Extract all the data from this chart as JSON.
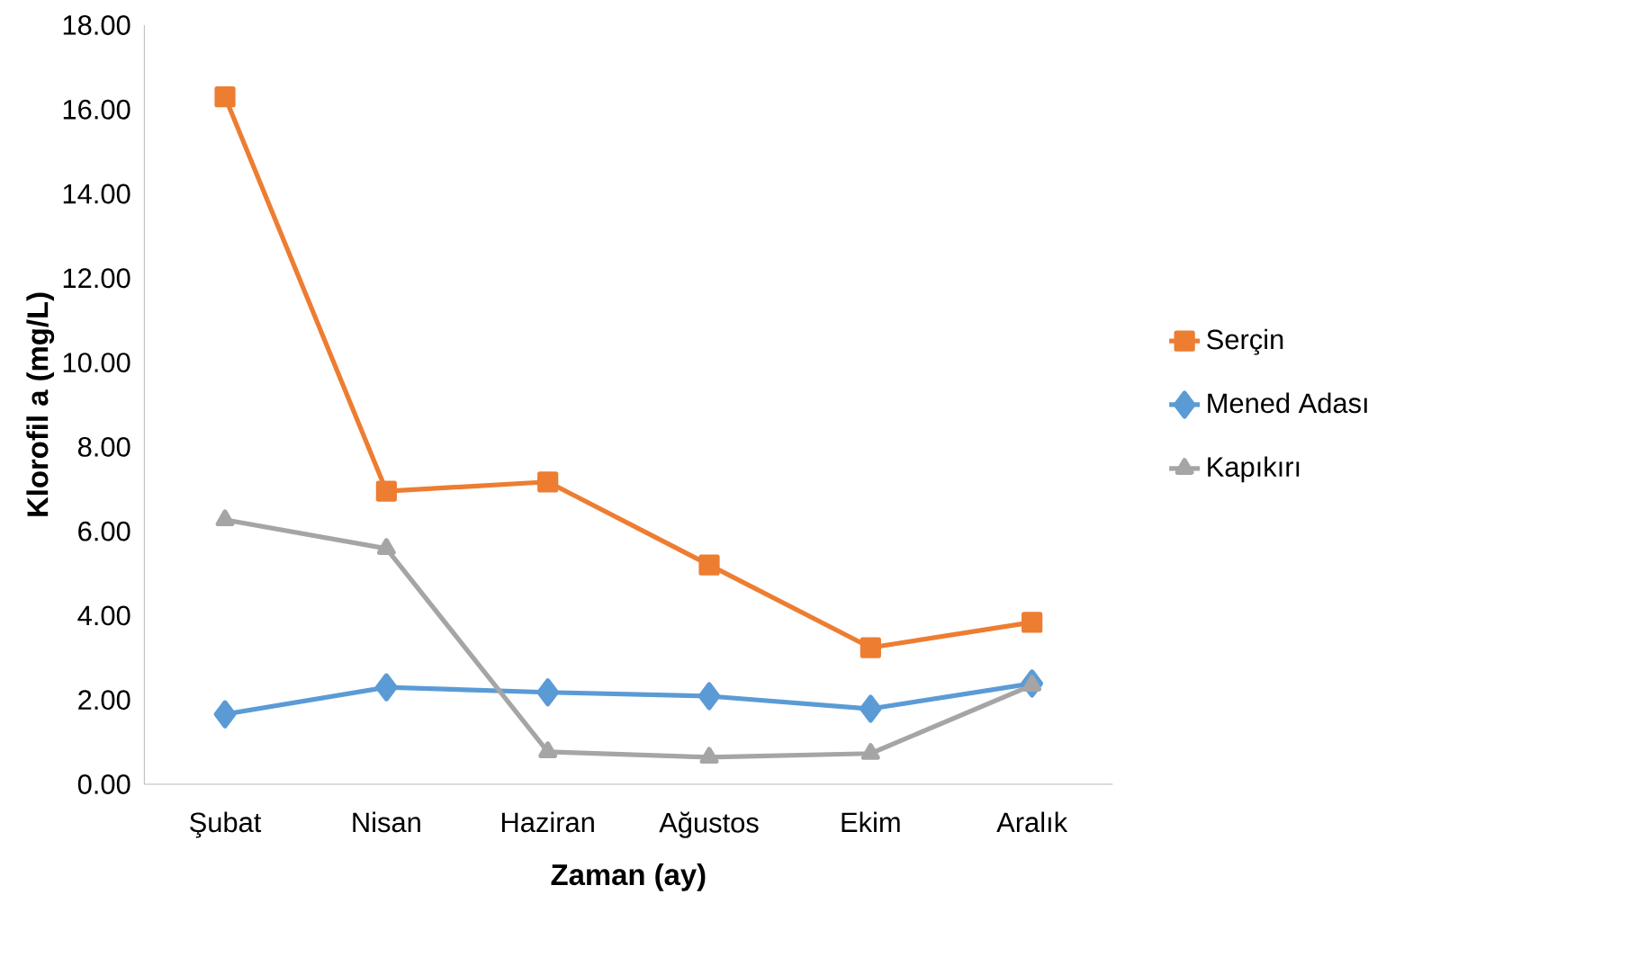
{
  "chart_data": {
    "type": "line",
    "xlabel": "Zaman (ay)",
    "ylabel": "Klorofil a (mg/L)",
    "categories": [
      "Şubat",
      "Nisan",
      "Haziran",
      "Ağustos",
      "Ekim",
      "Aralık"
    ],
    "series": [
      {
        "name": "Serçin",
        "color": "#ed7d31",
        "marker": "square",
        "values": [
          16.3,
          6.95,
          7.17,
          5.2,
          3.24,
          3.84
        ]
      },
      {
        "name": "Mened Adası",
        "color": "#5b9bd5",
        "marker": "diamond",
        "values": [
          1.66,
          2.3,
          2.18,
          2.09,
          1.79,
          2.39
        ]
      },
      {
        "name": "Kapıkırı",
        "color": "#a5a5a5",
        "marker": "triangle",
        "values": [
          6.27,
          5.59,
          0.77,
          0.64,
          0.73,
          2.35
        ]
      }
    ],
    "ylim": [
      0,
      18
    ],
    "yticks": [
      {
        "value": 0,
        "label": "0.00"
      },
      {
        "value": 2,
        "label": "2.00"
      },
      {
        "value": 4,
        "label": "4.00"
      },
      {
        "value": 6,
        "label": "6.00"
      },
      {
        "value": 8,
        "label": "8.00"
      },
      {
        "value": 10,
        "label": "10.00"
      },
      {
        "value": 12,
        "label": "12.00"
      },
      {
        "value": 14,
        "label": "14.00"
      },
      {
        "value": 16,
        "label": "16.00"
      },
      {
        "value": 18,
        "label": "18.00"
      }
    ],
    "grid": false,
    "legend": "right",
    "line_style": "solid"
  }
}
